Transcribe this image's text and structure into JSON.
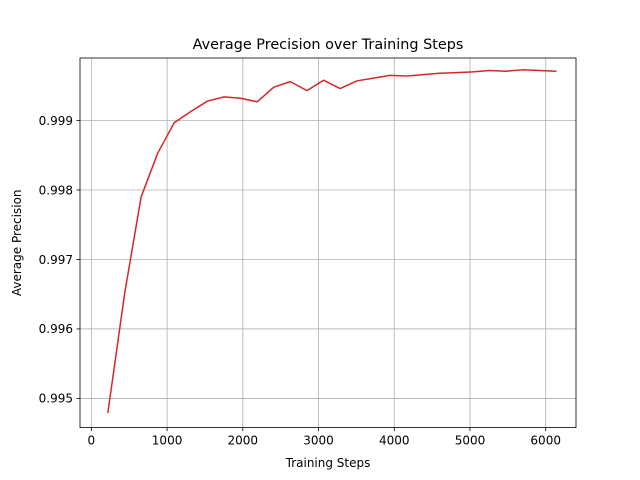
{
  "chart_data": {
    "type": "line",
    "title": "Average Precision over Training Steps",
    "xlabel": "Training Steps",
    "ylabel": "Average Precision",
    "xlim": [
      -150,
      6400
    ],
    "ylim": [
      0.99458,
      0.9999
    ],
    "xticks": [
      0,
      1000,
      2000,
      3000,
      4000,
      5000,
      6000
    ],
    "xtick_labels": [
      "0",
      "1000",
      "2000",
      "3000",
      "4000",
      "5000",
      "6000"
    ],
    "yticks": [
      0.995,
      0.996,
      0.997,
      0.998,
      0.999
    ],
    "ytick_labels": [
      "0.995",
      "0.996",
      "0.997",
      "0.998",
      "0.999"
    ],
    "grid": true,
    "series": [
      {
        "color": "#d62728",
        "x": [
          219,
          438,
          657,
          876,
          1095,
          1314,
          1533,
          1752,
          1971,
          2190,
          2409,
          2628,
          2847,
          3066,
          3285,
          3504,
          3723,
          3942,
          4161,
          4380,
          4599,
          4818,
          5037,
          5256,
          5475,
          5694,
          5913,
          6132
        ],
        "y": [
          0.9948,
          0.9965,
          0.9979,
          0.99853,
          0.99897,
          0.99913,
          0.99928,
          0.99934,
          0.99932,
          0.99927,
          0.99948,
          0.99956,
          0.99943,
          0.99958,
          0.99946,
          0.99957,
          0.99961,
          0.99965,
          0.99964,
          0.99966,
          0.99968,
          0.99969,
          0.9997,
          0.99972,
          0.99971,
          0.99973,
          0.99972,
          0.99971
        ]
      }
    ]
  }
}
